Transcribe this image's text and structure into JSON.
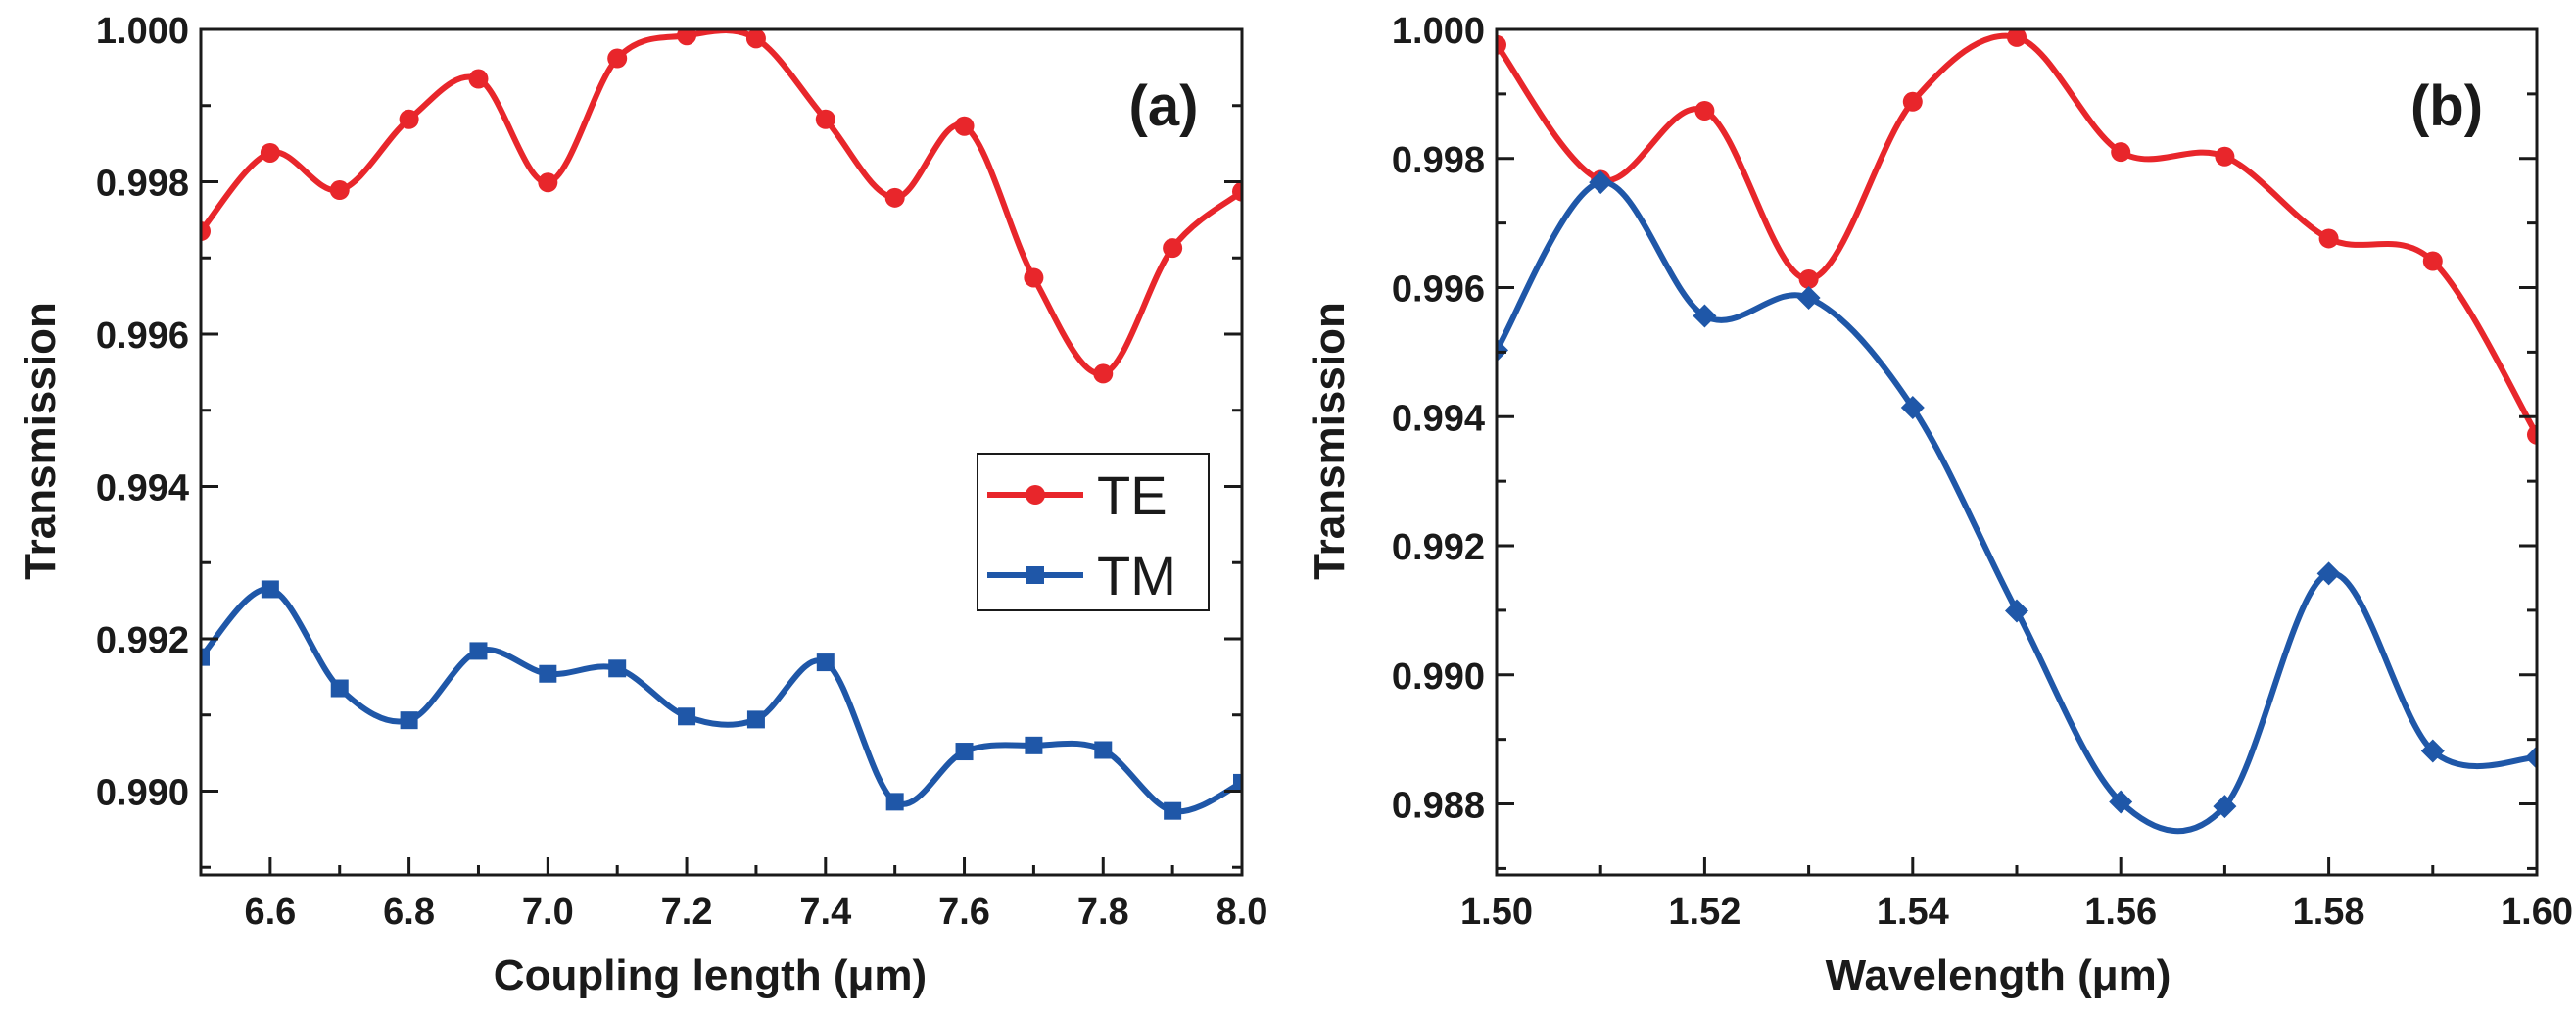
{
  "chart_data": [
    {
      "type": "line",
      "panel_label": "(a)",
      "xlabel": "Coupling length (μm)",
      "ylabel": "Transmission",
      "xlim": [
        6.5,
        8.0
      ],
      "ylim": [
        0.9889,
        1.0
      ],
      "xticks": [
        6.6,
        6.8,
        7.0,
        7.2,
        7.4,
        7.6,
        7.8,
        8.0
      ],
      "xtick_labels": [
        "6.6",
        "6.8",
        "7.0",
        "7.2",
        "7.4",
        "7.6",
        "7.8",
        "8.0"
      ],
      "yticks": [
        0.99,
        0.992,
        0.994,
        0.996,
        0.998,
        1.0
      ],
      "ytick_labels": [
        "0.990",
        "0.992",
        "0.994",
        "0.996",
        "0.998",
        "1.000"
      ],
      "legend": {
        "position": "center-right",
        "entries": [
          "TE",
          "TM"
        ]
      },
      "series": [
        {
          "name": "TE",
          "color": "#e8262b",
          "marker": "circle",
          "x": [
            6.5,
            6.6,
            6.7,
            6.8,
            6.9,
            7.0,
            7.1,
            7.2,
            7.3,
            7.4,
            7.5,
            7.6,
            7.7,
            7.8,
            7.9,
            8.0
          ],
          "values": [
            0.99735,
            0.99838,
            0.99789,
            0.99882,
            0.99935,
            0.99799,
            0.99962,
            0.99992,
            0.99988,
            0.99882,
            0.99779,
            0.99873,
            0.99674,
            0.99548,
            0.99713,
            0.99787
          ]
        },
        {
          "name": "TM",
          "color": "#1f57a8",
          "marker": "square",
          "x": [
            6.5,
            6.6,
            6.7,
            6.8,
            6.9,
            7.0,
            7.1,
            7.2,
            7.3,
            7.4,
            7.5,
            7.6,
            7.7,
            7.8,
            7.9,
            8.0
          ],
          "values": [
            0.99176,
            0.99265,
            0.99135,
            0.99093,
            0.99184,
            0.99154,
            0.99161,
            0.99098,
            0.99094,
            0.99169,
            0.98986,
            0.99052,
            0.9906,
            0.99054,
            0.98974,
            0.99011
          ]
        }
      ]
    },
    {
      "type": "line",
      "panel_label": "(b)",
      "xlabel": "Wavelength (μm)",
      "ylabel": "Transmission",
      "xlim": [
        1.5,
        1.6
      ],
      "ylim": [
        0.9869,
        1.0
      ],
      "xticks": [
        1.5,
        1.52,
        1.54,
        1.56,
        1.58,
        1.6
      ],
      "xtick_labels": [
        "1.50",
        "1.52",
        "1.54",
        "1.56",
        "1.58",
        "1.60"
      ],
      "yticks": [
        0.988,
        0.99,
        0.992,
        0.994,
        0.996,
        0.998,
        1.0
      ],
      "ytick_labels": [
        "0.988",
        "0.990",
        "0.992",
        "0.994",
        "0.996",
        "0.998",
        "1.000"
      ],
      "series": [
        {
          "name": "TE",
          "color": "#e8262b",
          "marker": "circle",
          "x": [
            1.5,
            1.51,
            1.52,
            1.53,
            1.54,
            1.55,
            1.56,
            1.57,
            1.58,
            1.59,
            1.6
          ],
          "values": [
            0.99976,
            0.99767,
            0.99874,
            0.99613,
            0.99888,
            0.99988,
            0.9981,
            0.99803,
            0.99676,
            0.99641,
            0.99372
          ]
        },
        {
          "name": "TM",
          "color": "#1f57a8",
          "marker": "diamond",
          "x": [
            1.5,
            1.51,
            1.52,
            1.53,
            1.54,
            1.55,
            1.56,
            1.57,
            1.58,
            1.59,
            1.6
          ],
          "values": [
            0.99503,
            0.99763,
            0.99556,
            0.99584,
            0.99414,
            0.99099,
            0.98803,
            0.98796,
            0.99157,
            0.98882,
            0.98872
          ]
        }
      ]
    }
  ]
}
